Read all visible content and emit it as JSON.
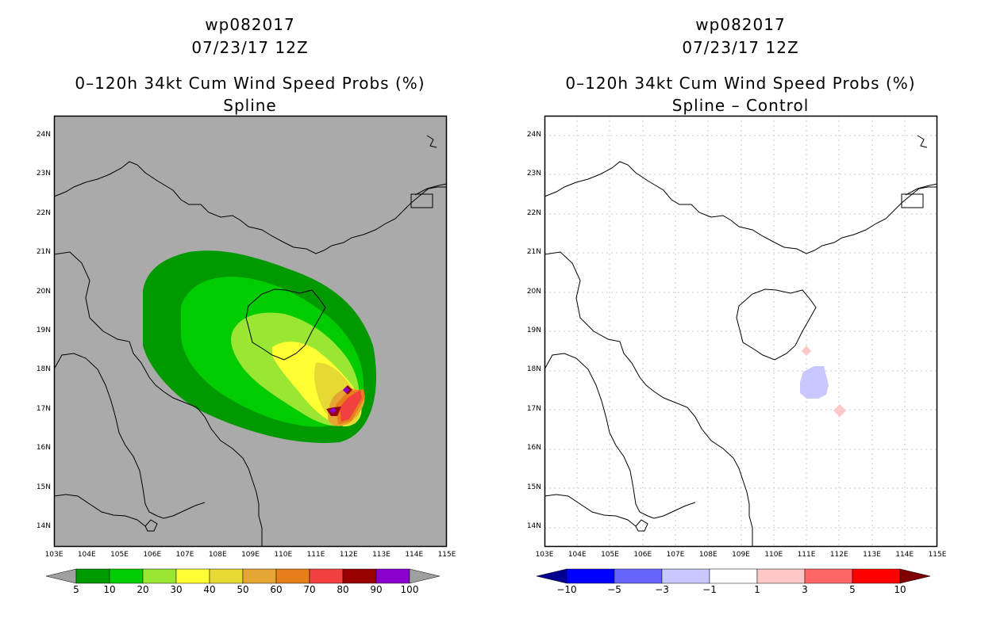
{
  "left_panel": {
    "title_lines": [
      "wp082017",
      "07/23/17 12Z",
      "",
      "0–120h 34kt Cum Wind Speed Probs (%)",
      "Spline"
    ],
    "colorbar": {
      "labels": [
        "5",
        "10",
        "20",
        "30",
        "40",
        "50",
        "60",
        "70",
        "80",
        "90",
        "100"
      ],
      "colors": [
        "#009900",
        "#00cc00",
        "#99e633",
        "#ffff33",
        "#e6d933",
        "#e6a633",
        "#e67f1a",
        "#f24040",
        "#990000",
        "#8a00cc"
      ],
      "end_colors": [
        "#a0a0a0",
        "#a0a0a0"
      ]
    }
  },
  "right_panel": {
    "title_lines": [
      "wp082017",
      "07/23/17 12Z",
      "",
      "0–120h 34kt Cum Wind Speed Probs (%)",
      "Spline – Control"
    ],
    "colorbar": {
      "labels": [
        "−10",
        "−5",
        "−3",
        "−1",
        "1",
        "3",
        "5",
        "10"
      ],
      "colors": [
        "#0000ff",
        "#6666ff",
        "#c8c8ff",
        "#ffffff",
        "#ffc8c8",
        "#ff6666",
        "#ff0000"
      ],
      "end_colors": [
        "#000090",
        "#800000"
      ]
    }
  },
  "axes": {
    "lon_labels": [
      "103E",
      "104E",
      "105E",
      "106E",
      "107E",
      "108E",
      "109E",
      "110E",
      "111E",
      "112E",
      "113E",
      "114E",
      "115E"
    ],
    "lat_labels": [
      "24N",
      "23N",
      "22N",
      "21N",
      "20N",
      "19N",
      "18N",
      "17N",
      "16N",
      "15N",
      "14N"
    ],
    "lon_range": [
      103,
      115
    ],
    "lat_range": [
      13.5,
      24.5
    ]
  },
  "map_data": {
    "ocean_color_left": "#aaaaaa",
    "ocean_color_right": "#ffffff",
    "prob_contours": [
      {
        "level": 5,
        "color": "#009900"
      },
      {
        "level": 10,
        "color": "#00cc00"
      },
      {
        "level": 20,
        "color": "#99e633"
      },
      {
        "level": 30,
        "color": "#ffff33"
      },
      {
        "level": 40,
        "color": "#e6d933"
      },
      {
        "level": 50,
        "color": "#e6a633"
      },
      {
        "level": 60,
        "color": "#e67f1a"
      },
      {
        "level": 70,
        "color": "#f24040"
      },
      {
        "level": 80,
        "color": "#990000"
      },
      {
        "level": 90,
        "color": "#8a00cc"
      }
    ],
    "diff_features": [
      {
        "kind": "negative",
        "color": "#c8c8ff"
      },
      {
        "kind": "positive",
        "color": "#ffc8c8"
      }
    ]
  }
}
